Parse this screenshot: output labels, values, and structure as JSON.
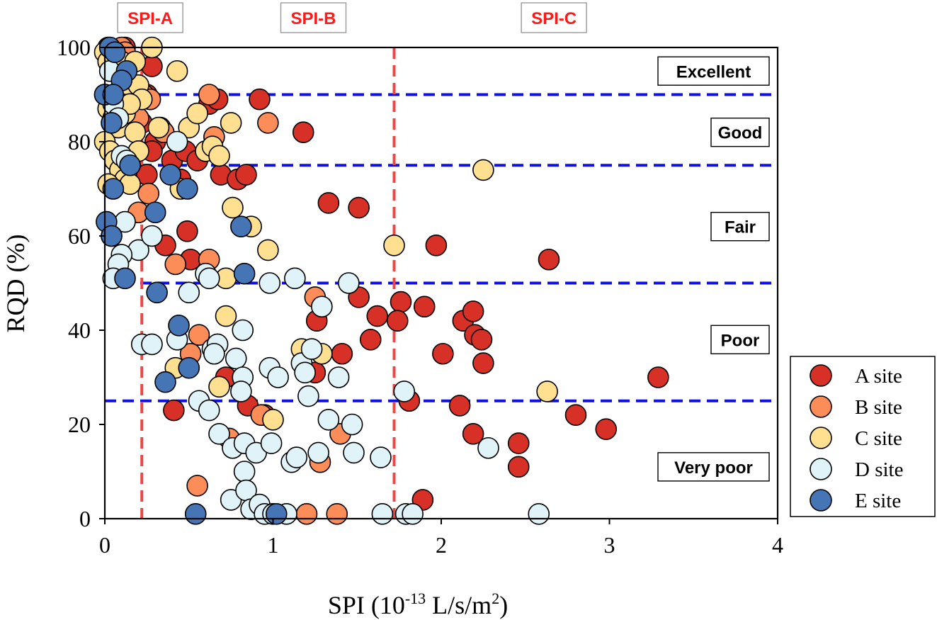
{
  "chart_data": {
    "type": "scatter",
    "xlabel": {
      "prefix": "SPI (10",
      "exp": "-13",
      "mid": " L/s/m",
      "exp2": "2",
      "suffix": ")"
    },
    "ylabel": "RQD (%)",
    "xlim": [
      0,
      4
    ],
    "ylim": [
      0,
      100
    ],
    "x_ticks": [
      0,
      1,
      2,
      3,
      4
    ],
    "y_ticks": [
      0,
      20,
      40,
      60,
      80,
      100
    ],
    "h_lines": [
      25,
      50,
      75,
      90
    ],
    "v_lines": [
      0.22,
      1.72
    ],
    "zone_labels": [
      {
        "text": "Excellent",
        "y": 95
      },
      {
        "text": "Good",
        "y": 82
      },
      {
        "text": "Fair",
        "y": 62
      },
      {
        "text": "Poor",
        "y": 38
      },
      {
        "text": "Very poor",
        "y": 11
      }
    ],
    "spi_labels": [
      {
        "text": "SPI-A",
        "x": 0.27
      },
      {
        "text": "SPI-B",
        "x": 1.24
      },
      {
        "text": "SPI-C",
        "x": 2.67
      }
    ],
    "series": [
      {
        "name": "A site",
        "color": "#d73027",
        "points": [
          [
            0.02,
            100
          ],
          [
            0.05,
            99
          ],
          [
            0.08,
            98
          ],
          [
            0.12,
            100
          ],
          [
            0.28,
            96
          ],
          [
            0.05,
            88
          ],
          [
            0.1,
            90
          ],
          [
            0.18,
            86
          ],
          [
            0.25,
            90
          ],
          [
            0.22,
            84
          ],
          [
            0.3,
            80
          ],
          [
            0.28,
            78
          ],
          [
            0.35,
            82
          ],
          [
            0.4,
            76
          ],
          [
            0.45,
            72
          ],
          [
            0.48,
            78
          ],
          [
            0.55,
            76
          ],
          [
            0.62,
            88
          ],
          [
            0.67,
            89
          ],
          [
            0.69,
            73
          ],
          [
            0.79,
            72
          ],
          [
            0.84,
            73
          ],
          [
            0.92,
            89
          ],
          [
            1.18,
            82
          ],
          [
            0.25,
            73
          ],
          [
            0.36,
            58
          ],
          [
            0.49,
            61
          ],
          [
            0.51,
            55
          ],
          [
            1.33,
            67
          ],
          [
            1.51,
            66
          ],
          [
            1.51,
            47
          ],
          [
            1.62,
            43
          ],
          [
            1.58,
            38
          ],
          [
            1.41,
            35
          ],
          [
            1.26,
            42
          ],
          [
            1.25,
            31
          ],
          [
            0.72,
            30
          ],
          [
            0.85,
            24
          ],
          [
            0.95,
            22
          ],
          [
            0.41,
            23
          ],
          [
            1.76,
            46
          ],
          [
            1.74,
            42
          ],
          [
            1.9,
            45
          ],
          [
            1.97,
            58
          ],
          [
            2.01,
            35
          ],
          [
            2.13,
            42
          ],
          [
            2.19,
            44
          ],
          [
            2.2,
            39
          ],
          [
            2.24,
            38
          ],
          [
            2.25,
            33
          ],
          [
            1.81,
            25
          ],
          [
            2.11,
            24
          ],
          [
            2.19,
            18
          ],
          [
            2.46,
            16
          ],
          [
            2.46,
            11
          ],
          [
            1.89,
            4
          ],
          [
            2.64,
            55
          ],
          [
            2.8,
            22
          ],
          [
            2.98,
            19
          ],
          [
            3.29,
            30
          ]
        ]
      },
      {
        "name": "B site",
        "color": "#fc8d59",
        "points": [
          [
            0.1,
            100
          ],
          [
            0.12,
            99
          ],
          [
            0.23,
            90
          ],
          [
            0.27,
            89
          ],
          [
            0.2,
            85
          ],
          [
            0.33,
            83
          ],
          [
            0.35,
            82
          ],
          [
            0.62,
            90
          ],
          [
            0.65,
            81
          ],
          [
            0.97,
            84
          ],
          [
            0.2,
            65
          ],
          [
            0.26,
            69
          ],
          [
            0.42,
            54
          ],
          [
            0.62,
            55
          ],
          [
            0.51,
            35
          ],
          [
            0.56,
            39
          ],
          [
            1.25,
            47
          ],
          [
            0.74,
            17
          ],
          [
            1.4,
            18
          ],
          [
            1.28,
            12
          ],
          [
            0.55,
            7
          ],
          [
            1.2,
            1
          ],
          [
            1.38,
            1
          ],
          [
            0.93,
            22
          ]
        ]
      },
      {
        "name": "C site",
        "color": "#fee090",
        "points": [
          [
            0.0,
            99
          ],
          [
            0.02,
            97
          ],
          [
            0.04,
            95
          ],
          [
            0.06,
            98
          ],
          [
            0.08,
            96
          ],
          [
            0.1,
            97
          ],
          [
            0.12,
            94
          ],
          [
            0.14,
            92
          ],
          [
            0.18,
            97
          ],
          [
            0.2,
            92
          ],
          [
            0.22,
            89
          ],
          [
            0.0,
            90
          ],
          [
            0.02,
            87
          ],
          [
            0.05,
            85
          ],
          [
            0.08,
            83
          ],
          [
            0.1,
            88
          ],
          [
            0.12,
            86
          ],
          [
            0.15,
            88
          ],
          [
            0.18,
            82
          ],
          [
            0.2,
            78
          ],
          [
            0.0,
            80
          ],
          [
            0.03,
            78
          ],
          [
            0.06,
            76
          ],
          [
            0.09,
            74
          ],
          [
            0.12,
            72
          ],
          [
            0.15,
            71
          ],
          [
            0.02,
            71
          ],
          [
            0.32,
            83
          ],
          [
            0.43,
            95
          ],
          [
            0.28,
            100
          ],
          [
            0.5,
            83
          ],
          [
            0.55,
            86
          ],
          [
            0.6,
            78
          ],
          [
            0.64,
            79
          ],
          [
            0.68,
            77
          ],
          [
            0.45,
            70
          ],
          [
            0.75,
            84
          ],
          [
            0.76,
            66
          ],
          [
            0.87,
            62
          ],
          [
            0.97,
            57
          ],
          [
            0.72,
            51
          ],
          [
            0.72,
            43
          ],
          [
            1.72,
            58
          ],
          [
            2.25,
            74
          ],
          [
            0.68,
            28
          ],
          [
            1.17,
            36
          ],
          [
            1.29,
            35
          ],
          [
            0.42,
            32
          ],
          [
            1.0,
            21
          ],
          [
            2.63,
            27
          ]
        ]
      },
      {
        "name": "D site",
        "color": "#e0f3f8",
        "points": [
          [
            0.03,
            95
          ],
          [
            0.05,
            88
          ],
          [
            0.08,
            85
          ],
          [
            0.1,
            77
          ],
          [
            0.13,
            76
          ],
          [
            0.43,
            80
          ],
          [
            0.12,
            63
          ],
          [
            0.2,
            57
          ],
          [
            0.28,
            60
          ],
          [
            0.04,
            60
          ],
          [
            0.1,
            56
          ],
          [
            0.08,
            54
          ],
          [
            0.05,
            51
          ],
          [
            0.6,
            52
          ],
          [
            0.62,
            51
          ],
          [
            0.5,
            48
          ],
          [
            0.98,
            50
          ],
          [
            1.13,
            51
          ],
          [
            1.45,
            50
          ],
          [
            0.82,
            40
          ],
          [
            0.43,
            38
          ],
          [
            0.22,
            37
          ],
          [
            0.28,
            37
          ],
          [
            0.64,
            36
          ],
          [
            0.67,
            37
          ],
          [
            0.65,
            35
          ],
          [
            0.78,
            34
          ],
          [
            0.82,
            30
          ],
          [
            0.98,
            32
          ],
          [
            1.03,
            30
          ],
          [
            1.17,
            33
          ],
          [
            1.19,
            31
          ],
          [
            1.23,
            36
          ],
          [
            1.29,
            45
          ],
          [
            1.39,
            30
          ],
          [
            1.21,
            26
          ],
          [
            0.81,
            27
          ],
          [
            0.56,
            25
          ],
          [
            0.62,
            23
          ],
          [
            0.68,
            18
          ],
          [
            0.76,
            15
          ],
          [
            0.83,
            16
          ],
          [
            0.9,
            14
          ],
          [
            0.99,
            16
          ],
          [
            1.11,
            12
          ],
          [
            1.14,
            13
          ],
          [
            1.27,
            14
          ],
          [
            1.33,
            21
          ],
          [
            1.47,
            20
          ],
          [
            1.48,
            14
          ],
          [
            1.64,
            13
          ],
          [
            1.78,
            27
          ],
          [
            2.28,
            15
          ],
          [
            0.83,
            10
          ],
          [
            0.75,
            4
          ],
          [
            0.84,
            6
          ],
          [
            0.87,
            2
          ],
          [
            0.92,
            3
          ],
          [
            0.95,
            1
          ],
          [
            1.0,
            1
          ],
          [
            1.08,
            1
          ],
          [
            1.65,
            1
          ],
          [
            1.79,
            1
          ],
          [
            1.83,
            1
          ],
          [
            2.58,
            1
          ]
        ]
      },
      {
        "name": "E site",
        "color": "#4575b4",
        "points": [
          [
            0.03,
            100
          ],
          [
            0.06,
            99
          ],
          [
            0.13,
            95
          ],
          [
            0.1,
            93
          ],
          [
            0.0,
            90
          ],
          [
            0.05,
            90
          ],
          [
            0.04,
            84
          ],
          [
            0.15,
            75
          ],
          [
            0.05,
            70
          ],
          [
            0.39,
            73
          ],
          [
            0.49,
            70
          ],
          [
            0.3,
            65
          ],
          [
            0.01,
            63
          ],
          [
            0.04,
            60
          ],
          [
            0.81,
            62
          ],
          [
            0.83,
            52
          ],
          [
            0.12,
            51
          ],
          [
            0.31,
            48
          ],
          [
            0.44,
            41
          ],
          [
            0.5,
            32
          ],
          [
            0.36,
            29
          ],
          [
            0.54,
            1
          ],
          [
            1.02,
            1
          ]
        ]
      }
    ]
  }
}
